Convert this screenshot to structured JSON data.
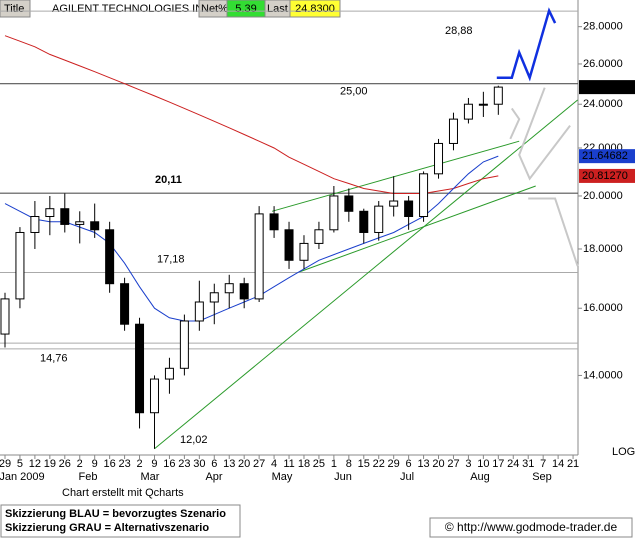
{
  "chart_data": {
    "type": "candlestick",
    "header": {
      "title_cell": "Title",
      "name": "AGILENT TECHNOLOGIES INC",
      "net_label": "Net%",
      "net": "5.39",
      "last_label": "Last",
      "last": "24.8300"
    },
    "scale": "log",
    "scale_label": "LOG",
    "categories": [
      "29",
      "5",
      "12",
      "19",
      "26",
      "2",
      "9",
      "16",
      "23",
      "2",
      "9",
      "16",
      "23",
      "30",
      "6",
      "13",
      "20",
      "27",
      "4",
      "11",
      "18",
      "25",
      "1",
      "8",
      "15",
      "22",
      "29",
      "6",
      "13",
      "20",
      "27",
      "3",
      "10",
      "17",
      "24",
      "31",
      "7",
      "14",
      "21"
    ],
    "months": [
      "Jan 2009",
      "Feb",
      "Mar",
      "Apr",
      "May",
      "Jun",
      "Jul",
      "Aug",
      "Sep"
    ],
    "xlim": [
      -0.334,
      38.33
    ],
    "ylim": [
      12,
      29
    ],
    "yticks": [
      {
        "value": 14,
        "label": "14.0000"
      },
      {
        "value": 16,
        "label": "16.0000"
      },
      {
        "value": 18,
        "label": "18.0000"
      },
      {
        "value": 20,
        "label": "20.0000"
      },
      {
        "value": 22,
        "label": "22.0000"
      },
      {
        "value": 24,
        "label": "24.0000"
      },
      {
        "value": 26,
        "label": "26.0000"
      },
      {
        "value": 28,
        "label": "28.0000"
      }
    ],
    "candles": [
      [
        15.2,
        16.5,
        14.8,
        16.3
      ],
      [
        16.3,
        18.8,
        16.0,
        18.6
      ],
      [
        18.6,
        19.8,
        18.0,
        19.2
      ],
      [
        19.2,
        20.0,
        18.5,
        19.5
      ],
      [
        19.5,
        20.1,
        18.6,
        18.9
      ],
      [
        18.9,
        19.4,
        18.2,
        19.0
      ],
      [
        19.0,
        19.7,
        18.4,
        18.7
      ],
      [
        18.7,
        19.0,
        16.5,
        16.8
      ],
      [
        16.8,
        17.0,
        15.3,
        15.5
      ],
      [
        15.5,
        15.7,
        12.6,
        13.0
      ],
      [
        13.0,
        14.0,
        12.1,
        13.9
      ],
      [
        13.9,
        14.5,
        13.5,
        14.2
      ],
      [
        14.2,
        15.8,
        14.0,
        15.6
      ],
      [
        15.6,
        16.9,
        15.3,
        16.2
      ],
      [
        16.2,
        16.8,
        15.5,
        16.5
      ],
      [
        16.5,
        17.1,
        16.0,
        16.8
      ],
      [
        16.8,
        17.0,
        16.0,
        16.3
      ],
      [
        16.3,
        19.6,
        16.2,
        19.3
      ],
      [
        19.3,
        19.6,
        18.4,
        18.7
      ],
      [
        18.7,
        19.0,
        17.3,
        17.6
      ],
      [
        17.6,
        18.5,
        17.3,
        18.2
      ],
      [
        18.2,
        19.0,
        18.0,
        18.7
      ],
      [
        18.7,
        20.4,
        18.6,
        20.0
      ],
      [
        20.0,
        20.3,
        19.0,
        19.4
      ],
      [
        19.4,
        19.5,
        18.2,
        18.6
      ],
      [
        18.6,
        19.8,
        18.3,
        19.6
      ],
      [
        19.6,
        20.8,
        19.2,
        19.8
      ],
      [
        19.8,
        20.0,
        18.7,
        19.2
      ],
      [
        19.2,
        21.0,
        19.0,
        20.9
      ],
      [
        20.9,
        22.4,
        20.7,
        22.2
      ],
      [
        22.2,
        23.6,
        21.9,
        23.3
      ],
      [
        23.3,
        24.3,
        23.1,
        24.0
      ],
      [
        24.0,
        24.6,
        23.4,
        24.0
      ],
      [
        24.0,
        24.9,
        23.5,
        24.83
      ],
      null,
      null,
      null,
      null,
      null
    ],
    "series": [
      {
        "name": "MA200",
        "color": "#cc2020",
        "values": [
          27.5,
          27.2,
          26.9,
          26.5,
          26.2,
          25.9,
          25.6,
          25.3,
          25.0,
          24.7,
          24.4,
          24.1,
          23.8,
          23.5,
          23.2,
          22.9,
          22.6,
          22.3,
          22.0,
          21.6,
          21.3,
          21.0,
          20.7,
          20.5,
          20.3,
          20.2,
          20.1,
          20.1,
          20.1,
          20.2,
          20.3,
          20.5,
          20.7,
          20.8127,
          null,
          null,
          null,
          null,
          null
        ]
      },
      {
        "name": "MA50",
        "color": "#1a3fcc",
        "values": [
          19.7,
          19.4,
          19.1,
          19.0,
          19.0,
          18.8,
          18.6,
          18.2,
          17.5,
          16.7,
          16.0,
          15.7,
          15.6,
          15.6,
          15.8,
          16.0,
          16.2,
          16.4,
          16.7,
          17.0,
          17.3,
          17.6,
          17.8,
          18.0,
          18.2,
          18.4,
          18.6,
          18.9,
          19.2,
          19.7,
          20.3,
          20.9,
          21.4,
          21.64682,
          null,
          null,
          null,
          null,
          null
        ]
      }
    ],
    "markers": [
      {
        "value": 24.83,
        "label": "24.8300",
        "color": "#000000"
      },
      {
        "value": 21.64682,
        "label": "21.64682",
        "color": "#1a3fcc"
      },
      {
        "value": 20.8127,
        "label": "20.81270",
        "color": "#cc2020"
      }
    ],
    "hlines": [
      {
        "value": 28.88,
        "label": "28,88"
      },
      {
        "value": 25.0,
        "label": "25,00"
      },
      {
        "value": 20.11,
        "label": "20,11"
      },
      {
        "value": 17.18,
        "label": "17,18"
      },
      {
        "value": 14.93
      },
      {
        "value": 14.76,
        "label": "14,76"
      }
    ],
    "low_label": {
      "value": 12.02,
      "label": "12,02"
    },
    "trendlines": [
      {
        "color": "#2a9a2a",
        "x": [
          10,
          38.3
        ],
        "values": [
          12.1,
          24.2
        ]
      },
      {
        "color": "#2a9a2a",
        "x": [
          17.86,
          34.4
        ],
        "values": [
          19.4,
          22.3
        ]
      },
      {
        "color": "#2a9a2a",
        "x": [
          19.7,
          35.5
        ],
        "values": [
          17.2,
          20.4
        ]
      }
    ],
    "scenarios": [
      {
        "color": "#1030e0",
        "x": [
          32.9,
          33.9,
          34.4,
          35.1,
          36.4,
          36.8
        ],
        "values": [
          25.3,
          25.3,
          26.6,
          25.3,
          28.9,
          28.2
        ]
      },
      {
        "color": "#c8c8c8",
        "x": [
          36.1,
          34.4,
          35.1,
          37.8
        ],
        "values": [
          24.8,
          21.7,
          20.7,
          23.0
        ]
      },
      {
        "color": "#c8c8c8",
        "x": [
          33.9,
          34.4,
          33.8
        ],
        "values": [
          23.8,
          23.3,
          22.4
        ]
      },
      {
        "color": "#c8c8c8",
        "x": [
          35.0,
          36.8,
          38.3
        ],
        "values": [
          19.9,
          19.9,
          17.4
        ]
      }
    ],
    "footer": {
      "credit": "Chart erstellt mit Qcharts",
      "legend_blue": "Skizzierung BLAU = bevorzugtes Szenario",
      "legend_gray": "Skizzierung GRAU = Alternativszenario",
      "copyright": "© http://www.godmode-trader.de"
    }
  }
}
